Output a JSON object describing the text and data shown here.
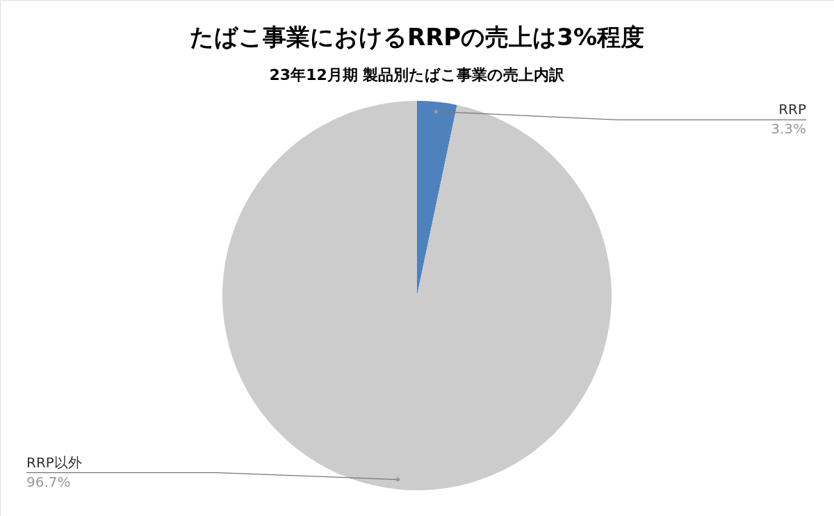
{
  "chart_data": {
    "type": "pie",
    "title": "たばこ事業におけるRRPの売上は3%程度",
    "subtitle": "23年12月期 製品別たばこ事業の売上内訳",
    "categories": [
      "RRP",
      "RRP以外"
    ],
    "values": [
      3.3,
      96.7
    ],
    "colors": [
      "#4f81bd",
      "#cccccc"
    ],
    "value_labels": [
      "3.3%",
      "96.7%"
    ]
  }
}
